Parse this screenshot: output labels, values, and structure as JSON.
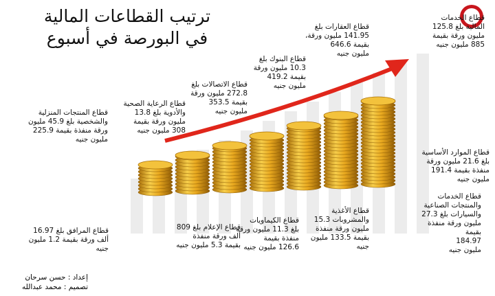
{
  "header": {
    "title_lines": [
      "ترتيب القطاعات المالية",
      "في البورصة في أسبوع"
    ]
  },
  "annotations": [
    {
      "lines": [
        "قطاع الخدمات",
        "المالية بلغ 125.8",
        "مليون ورقة بقيمة",
        "885 مليون جنيه"
      ]
    },
    {
      "lines": [
        "قطاع العقارات بلغ",
        "141.95 مليون ورقة،",
        "بقيمة 646.6",
        "مليون جنيه"
      ]
    },
    {
      "lines": [
        "قطاع البنوك بلغ",
        "10.3 مليون ورقة",
        "بقيمة 419.2",
        "مليون جنيه"
      ]
    },
    {
      "lines": [
        "قطاع الاتصالات بلغ",
        "272.8 مليون ورقة",
        "بقيمة 353.5",
        "مليون جنيه"
      ]
    },
    {
      "lines": [
        "قطاع الرعاية الصحية",
        "والأدوية بلغ 13.8",
        "مليون ورقة بقيمة",
        "308 مليون جنيه"
      ]
    },
    {
      "lines": [
        "قطاع المنتجات المنزلية",
        "والشخصية بلغ 45.9 مليون",
        "ورقة منفذة بقيمة 225.9",
        "مليون جنيه"
      ]
    },
    {
      "lines": [
        "قطاع الموارد الأساسية",
        "بلغ 21.6 مليون ورقة",
        "منفذة بقيمة 191.4",
        "مليون جنيه"
      ]
    },
    {
      "lines": [
        "قطاع الخدمات",
        "والمنتجات الصناعية",
        "والسيارات بلغ 27.3",
        "مليون ورقة منفذة",
        "بقيمة",
        "184.97",
        "مليون جنيه"
      ]
    },
    {
      "lines": [
        "قطاع الأغذية",
        "والمشروبات 15.3",
        "مليون ورقة منفذة",
        "بقيمة 133.5 مليون",
        "جنيه"
      ]
    },
    {
      "lines": [
        "قطاع الكيماويات",
        "بلغ 11.3 مليون ورقة",
        "منفذة بقيمة",
        "126.6 مليون جنيه"
      ]
    },
    {
      "lines": [
        "قطاع الإعلام بلغ 809",
        "ألف ورقة منفذة",
        "بقيمة 5.3 مليون جنيه"
      ]
    },
    {
      "lines": [
        "قطاع المرافق بلغ 16.97",
        "ألف ورقة بقيمة 1.2 مليون",
        "جنيه"
      ]
    }
  ],
  "credits": [
    "إعداد : حسن سرحان",
    "تصميم : محمد عبدالله"
  ]
}
